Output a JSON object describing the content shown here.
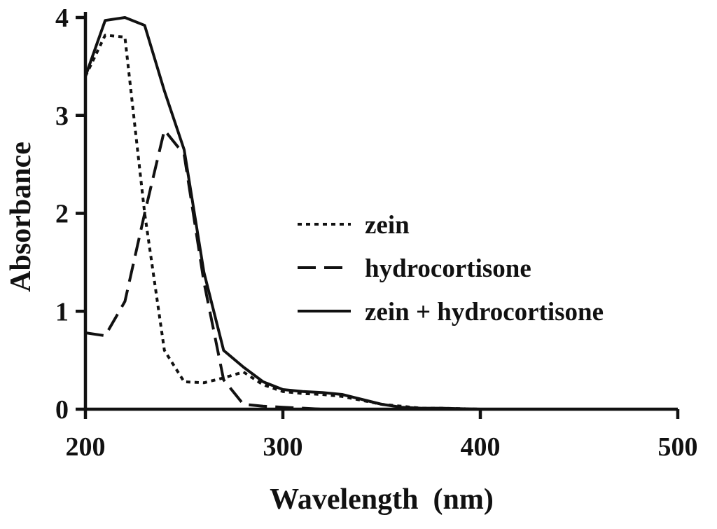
{
  "chart_data": {
    "type": "line",
    "title": "",
    "xlabel": "Wavelength  (nm)",
    "ylabel": "Absorbance",
    "xlim": [
      200,
      500
    ],
    "ylim": [
      0,
      4
    ],
    "x_ticks": [
      "200",
      "300",
      "400",
      "500"
    ],
    "y_ticks": [
      "0",
      "1",
      "2",
      "3",
      "4"
    ],
    "grid": false,
    "legend_position": "center-right",
    "series": [
      {
        "name": "zein",
        "style": "dotted",
        "color": "#111111",
        "x": [
          200,
          210,
          220,
          230,
          240,
          250,
          260,
          270,
          280,
          290,
          300,
          310,
          320,
          330,
          340,
          350,
          360,
          370,
          380,
          400,
          420,
          440,
          460
        ],
        "y": [
          3.4,
          3.82,
          3.8,
          2.0,
          0.6,
          0.28,
          0.27,
          0.32,
          0.38,
          0.25,
          0.18,
          0.16,
          0.15,
          0.13,
          0.09,
          0.05,
          0.03,
          0.01,
          0.01,
          0.0,
          0.0,
          0.0,
          0.0
        ]
      },
      {
        "name": "hydrocortisone",
        "style": "dashed",
        "color": "#111111",
        "x": [
          200,
          210,
          220,
          230,
          240,
          250,
          260,
          270,
          280,
          290,
          300,
          320,
          340
        ],
        "y": [
          0.78,
          0.75,
          1.1,
          2.0,
          2.85,
          2.6,
          1.3,
          0.3,
          0.05,
          0.03,
          0.02,
          0.0,
          0.0
        ]
      },
      {
        "name": "zein + hydrocortisone",
        "style": "solid",
        "color": "#111111",
        "x": [
          200,
          210,
          220,
          230,
          240,
          250,
          260,
          270,
          280,
          290,
          300,
          310,
          320,
          330,
          340,
          350,
          360,
          370,
          380,
          400,
          420,
          440,
          460
        ],
        "y": [
          3.4,
          3.97,
          4.0,
          3.92,
          3.25,
          2.65,
          1.4,
          0.6,
          0.43,
          0.28,
          0.2,
          0.18,
          0.17,
          0.15,
          0.1,
          0.05,
          0.02,
          0.01,
          0.01,
          0.0,
          0.0,
          0.0,
          0.0
        ]
      }
    ]
  }
}
